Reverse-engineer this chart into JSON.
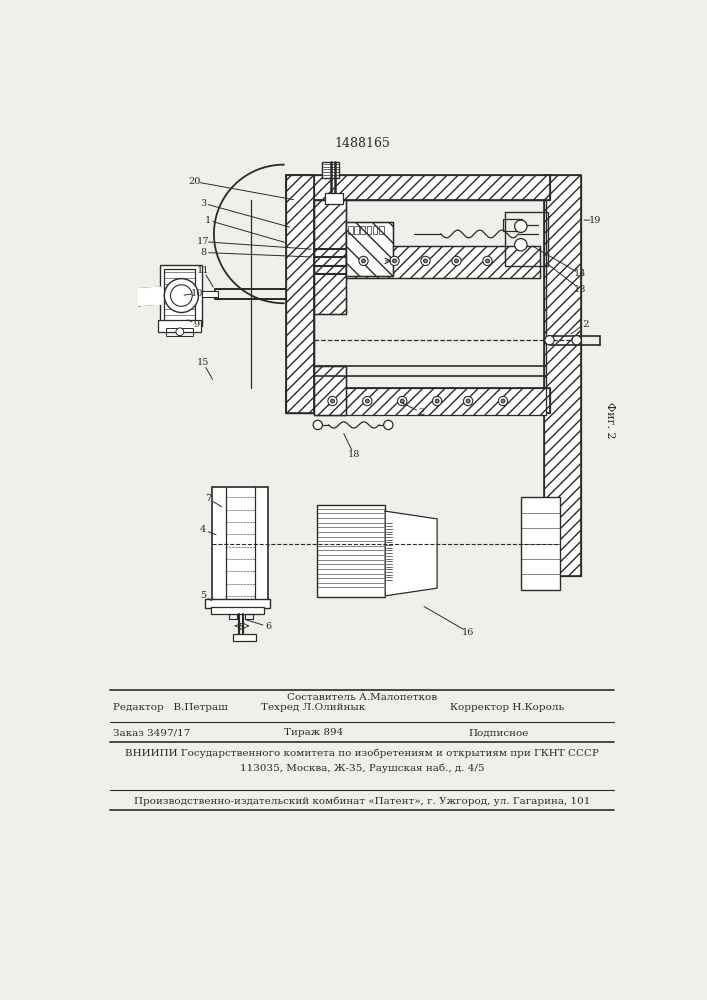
{
  "patent_number": "1488165",
  "fig_label": "Фиг. 2",
  "background_color": "#f0f0eb",
  "line_color": "#2a2a2a",
  "footer": {
    "sestavitel_label": "Составитель А.Малопетков",
    "redaktor_label": "Редактор   В.Петраш",
    "tehred_label": "Техред Л.Олийнык",
    "korrektor_label": "Корректор Н.Король",
    "zakaz_label": "Заказ 3497/17",
    "tirazh_label": "Тираж 894",
    "podpisnoe_label": "Подписное",
    "vniipи_line1": "ВНИИПИ Государственного комитета по изобретениям и открытиям при ГКНТ СССР",
    "vniipи_line2": "113035, Москва, Ж-35, Раушская наб., д. 4/5",
    "proizv_line": "Производственно-издательский комбинат «Патент», г. Ужгород, ул. Гагарина, 101"
  }
}
